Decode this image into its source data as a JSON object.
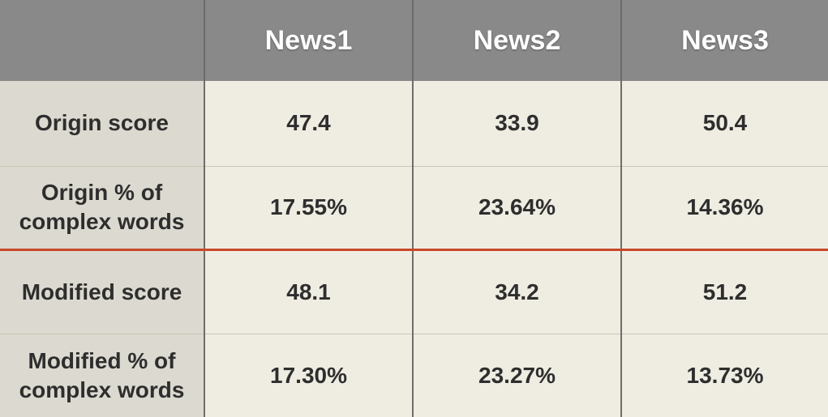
{
  "table": {
    "header": {
      "corner": "",
      "columns": [
        "News1",
        "News2",
        "News3"
      ]
    },
    "rows": [
      {
        "label": "Origin score",
        "values": [
          "47.4",
          "33.9",
          "50.4"
        ]
      },
      {
        "label": "Origin % of complex words",
        "values": [
          "17.55%",
          "23.64%",
          "14.36%"
        ]
      },
      {
        "label": "Modified score",
        "values": [
          "48.1",
          "34.2",
          "51.2"
        ]
      },
      {
        "label": "Modified % of complex words",
        "values": [
          "17.30%",
          "23.27%",
          "13.73%"
        ]
      }
    ]
  },
  "colors": {
    "header_bg": "#898989",
    "header_text": "#ffffff",
    "row_label_bg": "#dcdad0",
    "cell_bg": "#efede2",
    "separator_accent": "#c9472b"
  }
}
